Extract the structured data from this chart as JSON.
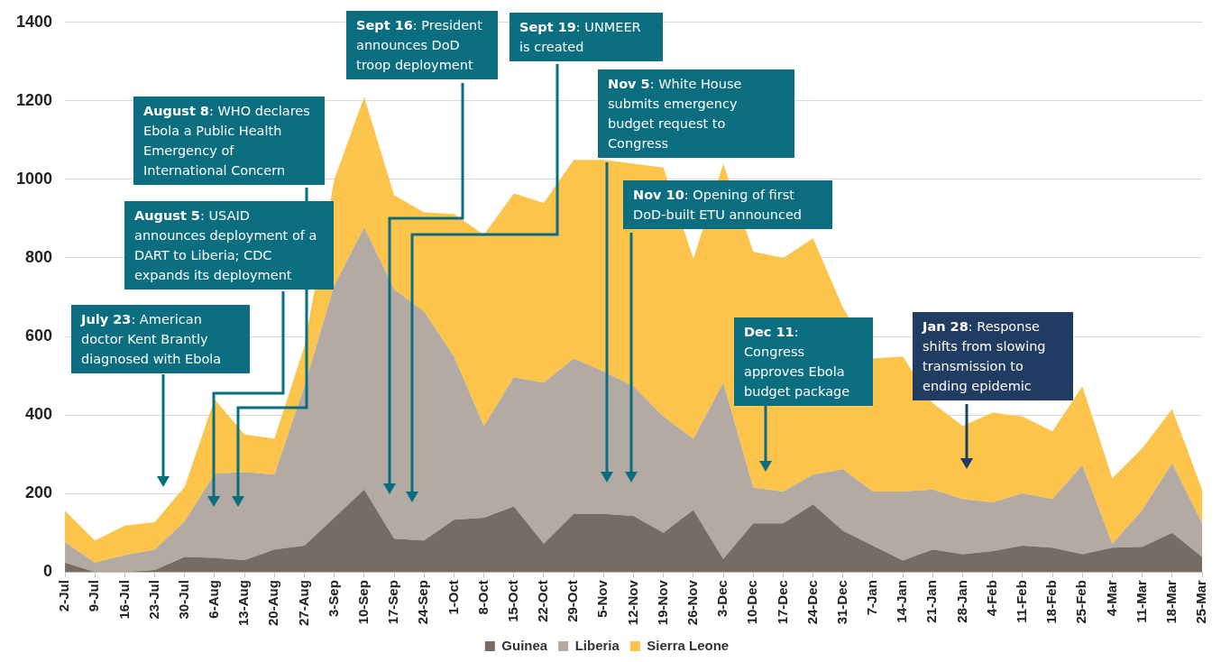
{
  "chart_data": {
    "type": "area",
    "stacked": true,
    "grid": "y",
    "legend": "bottom",
    "categories": [
      "2-Jul",
      "9-Jul",
      "16-Jul",
      "23-Jul",
      "30-Jul",
      "6-Aug",
      "13-Aug",
      "20-Aug",
      "27-Aug",
      "3-Sep",
      "10-Sep",
      "17-Sep",
      "24-Sep",
      "1-Oct",
      "8-Oct",
      "15-Oct",
      "22-Oct",
      "29-Oct",
      "5-Nov",
      "12-Nov",
      "19-Nov",
      "26-Nov",
      "3-Dec",
      "10-Dec",
      "17-Dec",
      "24-Dec",
      "31-Dec",
      "7-Jan",
      "14-Jan",
      "21-Jan",
      "28-Jan",
      "4-Feb",
      "11-Feb",
      "18-Feb",
      "25-Feb",
      "4-Mar",
      "11-Mar",
      "18-Mar",
      "25-Mar"
    ],
    "series": [
      {
        "name": "Guinea",
        "color": "#756c65",
        "values": [
          24,
          0,
          0,
          5,
          38,
          36,
          30,
          57,
          67,
          138,
          210,
          85,
          80,
          133,
          138,
          167,
          72,
          148,
          148,
          143,
          100,
          158,
          33,
          124,
          124,
          172,
          105,
          67,
          29,
          57,
          45,
          53,
          67,
          62,
          45,
          62,
          64,
          100,
          38
        ]
      },
      {
        "name": "Liberia",
        "color": "#b3aba3",
        "values": [
          52,
          24,
          43,
          52,
          91,
          214,
          225,
          191,
          406,
          592,
          668,
          635,
          583,
          416,
          234,
          329,
          410,
          396,
          363,
          330,
          296,
          181,
          449,
          91,
          81,
          76,
          157,
          138,
          176,
          153,
          141,
          124,
          133,
          124,
          227,
          10,
          94,
          177,
          86
        ]
      },
      {
        "name": "Sierra Leone",
        "color": "#fcc44a",
        "values": [
          80,
          56,
          75,
          70,
          88,
          190,
          95,
          92,
          102,
          270,
          332,
          240,
          253,
          363,
          487,
          468,
          458,
          506,
          539,
          567,
          634,
          458,
          558,
          601,
          595,
          602,
          411,
          339,
          344,
          220,
          186,
          229,
          196,
          172,
          201,
          167,
          157,
          138,
          86
        ]
      }
    ],
    "ylim": [
      0,
      1400
    ],
    "yticks": [
      0,
      200,
      400,
      600,
      800,
      1000,
      1200,
      1400
    ],
    "annotations": [
      "July 23: American doctor Kent Brantly diagnosed with Ebola",
      "August 5: USAID announces deployment of a DART to Liberia; CDC expands its deployment",
      "August 8: WHO declares Ebola a Public Health Emergency of International Concern",
      "Sept 16: President announces DoD troop deployment",
      "Sept 19: UNMEER is created",
      "Nov 5: White House submits emergency budget request to Congress",
      "Nov 10: Opening of first DoD-built ETU announced",
      "Dec 11: Congress approves Ebola budget package",
      "Jan 28: Response shifts from slowing transmission to ending epidemic"
    ]
  }
}
